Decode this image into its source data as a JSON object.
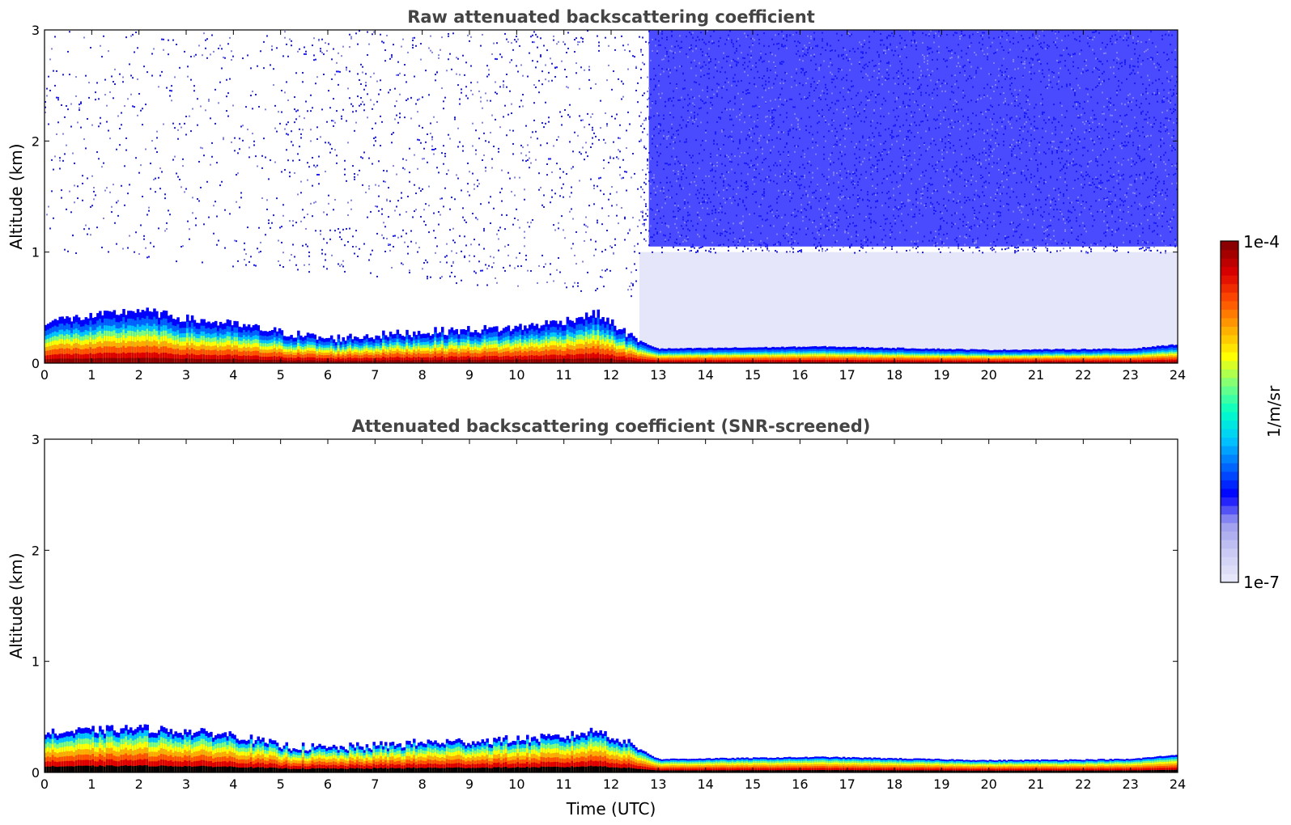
{
  "chart_data": [
    {
      "type": "heatmap",
      "title": "Raw attenuated backscattering coefficient",
      "xlabel": "",
      "ylabel": "Altitude (km)",
      "xlim": [
        0,
        24
      ],
      "ylim": [
        0,
        3
      ],
      "xticks": [
        "0",
        "1",
        "2",
        "3",
        "4",
        "5",
        "6",
        "7",
        "8",
        "9",
        "10",
        "11",
        "12",
        "13",
        "14",
        "15",
        "16",
        "17",
        "18",
        "19",
        "20",
        "21",
        "22",
        "23",
        "24"
      ],
      "yticks": [
        "0",
        "1",
        "2",
        "3"
      ],
      "noise_top_km": 3,
      "aerosol_layer_top_km": {
        "hours": [
          0,
          1,
          2,
          3,
          4,
          5,
          6,
          7,
          8,
          9,
          10,
          11,
          11.7,
          12.5,
          13,
          16.5,
          20,
          23,
          24
        ],
        "values": [
          0.38,
          0.42,
          0.48,
          0.4,
          0.35,
          0.28,
          0.22,
          0.25,
          0.28,
          0.3,
          0.32,
          0.38,
          0.45,
          0.22,
          0.13,
          0.15,
          0.12,
          0.13,
          0.17
        ]
      }
    },
    {
      "type": "heatmap",
      "title": "Attenuated backscattering coefficient (SNR-screened)",
      "xlabel": "Time (UTC)",
      "ylabel": "Altitude (km)",
      "xlim": [
        0,
        24
      ],
      "ylim": [
        0,
        3
      ],
      "xticks": [
        "0",
        "1",
        "2",
        "3",
        "4",
        "5",
        "6",
        "7",
        "8",
        "9",
        "10",
        "11",
        "12",
        "13",
        "14",
        "15",
        "16",
        "17",
        "18",
        "19",
        "20",
        "21",
        "22",
        "23",
        "24"
      ],
      "yticks": [
        "0",
        "1",
        "2",
        "3"
      ],
      "aerosol_layer_top_km": {
        "hours": [
          0,
          1,
          2,
          3,
          4,
          5,
          6,
          7,
          8,
          9,
          10,
          11,
          11.7,
          12.5,
          13,
          16.5,
          20,
          23,
          24
        ],
        "values": [
          0.35,
          0.38,
          0.4,
          0.37,
          0.34,
          0.24,
          0.22,
          0.24,
          0.27,
          0.28,
          0.3,
          0.32,
          0.38,
          0.24,
          0.12,
          0.14,
          0.11,
          0.12,
          0.16
        ]
      }
    }
  ],
  "colorbar": {
    "label": "1/m/sr",
    "min_label": "1e-7",
    "max_label": "1e-4",
    "colors": [
      "#e6e6fa",
      "#c8c8f5",
      "#9b9bee",
      "#0000ff",
      "#0064ff",
      "#00c8ff",
      "#00ffc8",
      "#7dff7d",
      "#ffff00",
      "#ffaa00",
      "#ff5000",
      "#dc0000",
      "#8b0000"
    ]
  }
}
